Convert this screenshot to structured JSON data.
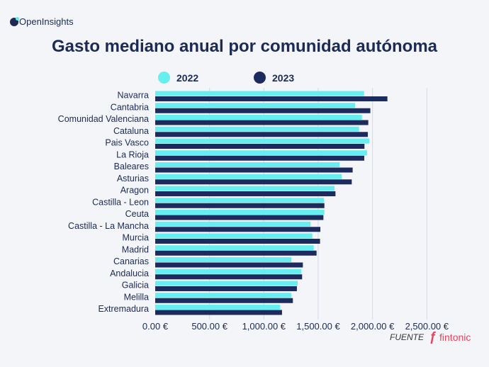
{
  "brand": {
    "logo_text": "OpenInsights"
  },
  "source": {
    "label": "FUENTE",
    "brand": "fintonic"
  },
  "colors": {
    "s2022": "#66eef0",
    "s2023": "#1c2a5e",
    "title": "#1c2a55",
    "grid": "#d5d9e3",
    "source": "#e8425a"
  },
  "chart_data": {
    "type": "bar",
    "orientation": "horizontal",
    "title": "Gasto mediano anual por comunidad autónoma",
    "xlabel": "",
    "ylabel": "",
    "xlim": [
      0,
      2500
    ],
    "xticks": [
      0,
      500,
      1000,
      1500,
      2000,
      2500
    ],
    "xtick_labels": [
      "0.00 €",
      "500.00 €",
      "1,000.00 €",
      "1,500.00 €",
      "2,000.00 €",
      "2,500.00 €"
    ],
    "grid": true,
    "legend_position": "top",
    "categories": [
      "Navarra",
      "Cantabria",
      "Comunidad Valenciana",
      "Cataluna",
      "Pais Vasco",
      "La Rioja",
      "Baleares",
      "Asturias",
      "Aragon",
      "Castilla - Leon",
      "Ceuta",
      "Castilla - La Mancha",
      "Murcia",
      "Madrid",
      "Canarias",
      "Andalucia",
      "Galicia",
      "Melilla",
      "Extremadura"
    ],
    "series": [
      {
        "name": "2022",
        "values": [
          1922,
          1839,
          1902,
          1876,
          1970,
          1950,
          1698,
          1717,
          1650,
          1552,
          1557,
          1430,
          1446,
          1459,
          1252,
          1343,
          1311,
          1252,
          1150
        ]
      },
      {
        "name": "2023",
        "values": [
          2137,
          1980,
          1961,
          1957,
          1926,
          1924,
          1817,
          1809,
          1659,
          1557,
          1548,
          1520,
          1517,
          1485,
          1359,
          1352,
          1304,
          1267,
          1167
        ]
      }
    ]
  }
}
